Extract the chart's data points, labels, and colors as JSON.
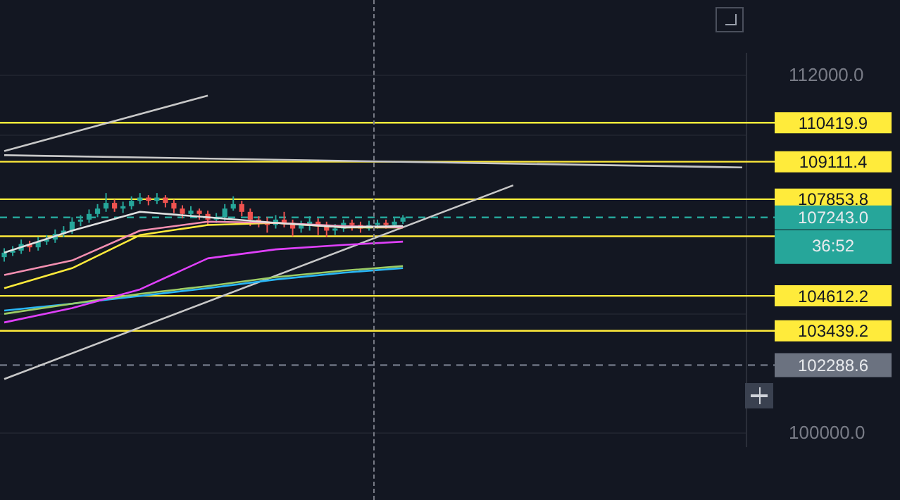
{
  "chart_data": {
    "type": "candlestick",
    "categories": [
      null,
      null,
      null,
      null,
      null,
      null,
      null,
      null,
      null,
      null,
      null,
      null,
      null,
      null,
      null,
      null,
      null,
      null,
      null,
      null,
      null,
      null,
      null,
      null,
      null,
      null,
      null,
      null,
      null,
      null,
      null,
      null,
      null,
      null,
      null,
      null,
      null,
      null,
      null,
      null,
      null,
      null,
      null,
      null,
      null,
      null,
      null,
      null,
      null,
      null,
      null,
      null,
      null,
      null,
      null,
      null,
      null,
      null,
      null,
      null,
      null,
      null,
      null,
      null,
      null,
      null,
      null,
      null,
      null,
      null,
      null,
      null,
      null,
      null,
      null,
      null,
      null,
      null,
      null,
      null,
      null,
      null,
      null,
      null,
      null,
      null,
      null,
      null
    ],
    "ohlc": [
      [
        105910,
        106210,
        105760,
        106060
      ],
      [
        106060,
        106280,
        105950,
        106130
      ],
      [
        106130,
        106500,
        106020,
        106350
      ],
      [
        106350,
        106460,
        106090,
        106240
      ],
      [
        106240,
        106580,
        106130,
        106430
      ],
      [
        106430,
        106650,
        106320,
        106500
      ],
      [
        106500,
        106840,
        106390,
        106690
      ],
      [
        106690,
        106950,
        106580,
        106800
      ],
      [
        106800,
        107250,
        106690,
        107100
      ],
      [
        107100,
        107320,
        106950,
        107170
      ],
      [
        107170,
        107510,
        107060,
        107360
      ],
      [
        107360,
        107690,
        107250,
        107540
      ],
      [
        107540,
        108060,
        107430,
        107730
      ],
      [
        107730,
        107840,
        107430,
        107540
      ],
      [
        107540,
        107770,
        107390,
        107620
      ],
      [
        107620,
        107950,
        107510,
        107800
      ],
      [
        107800,
        108060,
        107690,
        107910
      ],
      [
        107910,
        107990,
        107650,
        107800
      ],
      [
        107800,
        108060,
        107690,
        107910
      ],
      [
        107910,
        107990,
        107580,
        107730
      ],
      [
        107730,
        107840,
        107390,
        107540
      ],
      [
        107540,
        107650,
        107210,
        107360
      ],
      [
        107360,
        107620,
        107280,
        107470
      ],
      [
        107470,
        107540,
        107170,
        107360
      ],
      [
        107360,
        107470,
        106990,
        107170
      ],
      [
        107170,
        107390,
        107060,
        107250
      ],
      [
        107250,
        107690,
        107130,
        107540
      ],
      [
        107540,
        107950,
        107470,
        107690
      ],
      [
        107690,
        107800,
        107280,
        107430
      ],
      [
        107430,
        107540,
        106950,
        107170
      ],
      [
        107170,
        107280,
        106910,
        107100
      ],
      [
        107100,
        107250,
        106730,
        106990
      ],
      [
        106990,
        107320,
        106870,
        107170
      ],
      [
        107170,
        107430,
        106910,
        107060
      ],
      [
        107060,
        107170,
        106610,
        106870
      ],
      [
        106870,
        107130,
        106730,
        106990
      ],
      [
        106990,
        107280,
        106800,
        107100
      ],
      [
        107100,
        107210,
        106650,
        106950
      ],
      [
        106950,
        107100,
        106580,
        106800
      ],
      [
        106800,
        107020,
        106650,
        106870
      ],
      [
        106870,
        107170,
        106760,
        107060
      ],
      [
        107060,
        107170,
        106800,
        106990
      ],
      [
        106990,
        107100,
        106730,
        106870
      ],
      [
        106870,
        107130,
        106800,
        106990
      ],
      [
        106990,
        107170,
        106870,
        107060
      ],
      [
        107060,
        107170,
        106870,
        106990
      ],
      [
        106990,
        107210,
        106910,
        107100
      ],
      [
        107100,
        107320,
        107020,
        107243
      ],
      null,
      null,
      null,
      null,
      null,
      null,
      null,
      null,
      null,
      null,
      null,
      null,
      null,
      null,
      null,
      null,
      null,
      null,
      null,
      null,
      null,
      null,
      null,
      null,
      null,
      null,
      null,
      null,
      null,
      null,
      null,
      null,
      null,
      null,
      null,
      null,
      null,
      null,
      null,
      null
    ],
    "series": [
      {
        "type": "line",
        "color": "#e0e0e0",
        "values": [
          106060,
          null,
          null,
          null,
          null,
          null,
          null,
          null,
          106800,
          null,
          null,
          null,
          null,
          null,
          null,
          null,
          107430,
          null,
          null,
          null,
          null,
          null,
          null,
          null,
          107250,
          null,
          null,
          null,
          null,
          null,
          null,
          null,
          107060,
          null,
          null,
          null,
          null,
          null,
          null,
          null,
          106910,
          null,
          null,
          null,
          null,
          null,
          null,
          106950,
          null,
          null,
          null,
          null,
          null,
          null,
          null,
          null,
          null,
          null,
          null,
          null,
          null,
          null,
          null,
          null,
          null,
          null,
          null,
          null,
          null,
          null,
          null,
          null,
          null,
          null,
          null,
          null,
          null,
          null,
          null,
          null,
          null,
          null,
          null,
          null,
          null,
          null,
          null,
          null
        ]
      },
      {
        "type": "line",
        "color": "#f48fb1",
        "values": [
          105310,
          null,
          null,
          null,
          null,
          null,
          null,
          null,
          105800,
          null,
          null,
          null,
          null,
          null,
          null,
          null,
          106800,
          null,
          null,
          null,
          null,
          null,
          null,
          null,
          107100,
          null,
          null,
          null,
          null,
          null,
          null,
          null,
          107060,
          null,
          null,
          null,
          null,
          null,
          null,
          null,
          106950,
          null,
          null,
          null,
          null,
          null,
          null,
          106910,
          null,
          null,
          null,
          null,
          null,
          null,
          null,
          null,
          null,
          null,
          null,
          null,
          null,
          null,
          null,
          null,
          null,
          null,
          null,
          null,
          null,
          null,
          null,
          null,
          null,
          null,
          null,
          null,
          null,
          null,
          null,
          null,
          null,
          null,
          null,
          null,
          null,
          null,
          null,
          null
        ]
      },
      {
        "type": "line",
        "color": "#ffeb3b",
        "values": [
          104870,
          null,
          null,
          null,
          null,
          null,
          null,
          null,
          105540,
          null,
          null,
          null,
          null,
          null,
          null,
          null,
          106650,
          null,
          null,
          null,
          null,
          null,
          null,
          null,
          106990,
          null,
          null,
          null,
          null,
          null,
          null,
          null,
          107060,
          null,
          null,
          null,
          null,
          null,
          null,
          null,
          106910,
          null,
          null,
          null,
          null,
          null,
          null,
          106910,
          null,
          null,
          null,
          null,
          null,
          null,
          null,
          null,
          null,
          null,
          null,
          null,
          null,
          null,
          null,
          null,
          null,
          null,
          null,
          null,
          null,
          null,
          null,
          null,
          null,
          null,
          null,
          null,
          null,
          null,
          null,
          null,
          null,
          null,
          null,
          null,
          null,
          null,
          null,
          null
        ]
      },
      {
        "type": "line",
        "color": "#e040fb",
        "values": [
          103720,
          null,
          null,
          null,
          null,
          null,
          null,
          null,
          104200,
          null,
          null,
          null,
          null,
          null,
          null,
          null,
          104830,
          null,
          null,
          null,
          null,
          null,
          null,
          null,
          105870,
          null,
          null,
          null,
          null,
          null,
          null,
          null,
          106170,
          null,
          null,
          null,
          null,
          null,
          null,
          null,
          106320,
          null,
          null,
          null,
          null,
          null,
          null,
          106430,
          null,
          null,
          null,
          null,
          null,
          null,
          null,
          null,
          null,
          null,
          null,
          null,
          null,
          null,
          null,
          null,
          null,
          null,
          null,
          null,
          null,
          null,
          null,
          null,
          null,
          null,
          null,
          null,
          null,
          null,
          null,
          null,
          null,
          null,
          null,
          null,
          null,
          null,
          null,
          null
        ]
      },
      {
        "type": "line",
        "color": "#9ccc65",
        "values": [
          104010,
          null,
          null,
          null,
          null,
          null,
          null,
          null,
          104350,
          null,
          null,
          null,
          null,
          null,
          null,
          null,
          104680,
          null,
          null,
          null,
          null,
          null,
          null,
          null,
          104940,
          null,
          null,
          null,
          null,
          null,
          null,
          null,
          105240,
          null,
          null,
          null,
          null,
          null,
          null,
          null,
          105460,
          null,
          null,
          null,
          null,
          null,
          null,
          105610,
          null,
          null,
          null,
          null,
          null,
          null,
          null,
          null,
          null,
          null,
          null,
          null,
          null,
          null,
          null,
          null,
          null,
          null,
          null,
          null,
          null,
          null,
          null,
          null,
          null,
          null,
          null,
          null,
          null,
          null,
          null,
          null,
          null,
          null,
          null,
          null,
          null,
          null,
          null,
          null
        ]
      },
      {
        "type": "line",
        "color": "#29b6f6",
        "values": [
          104120,
          null,
          null,
          null,
          null,
          null,
          null,
          null,
          104350,
          null,
          null,
          null,
          null,
          null,
          null,
          null,
          104610,
          null,
          null,
          null,
          null,
          null,
          null,
          null,
          104870,
          null,
          null,
          null,
          null,
          null,
          null,
          null,
          105160,
          null,
          null,
          null,
          null,
          null,
          null,
          null,
          105390,
          null,
          null,
          null,
          null,
          null,
          null,
          105540,
          null,
          null,
          null,
          null,
          null,
          null,
          null,
          null,
          null,
          null,
          null,
          null,
          null,
          null,
          null,
          null,
          null,
          null,
          null,
          null,
          null,
          null,
          null,
          null,
          null,
          null,
          null,
          null,
          null,
          null,
          null,
          null,
          null,
          null,
          null,
          null,
          null,
          null,
          null,
          null
        ]
      },
      {
        "type": "line",
        "color": "#c8c8c8",
        "values": [
          109470,
          null,
          null,
          null,
          null,
          null,
          null,
          null,
          null,
          null,
          null,
          null,
          null,
          null,
          null,
          null,
          null,
          null,
          null,
          null,
          null,
          null,
          null,
          null,
          111330,
          null,
          null,
          null,
          null,
          null,
          null,
          null,
          null,
          null,
          null,
          null,
          null,
          null,
          null,
          null,
          null,
          null,
          null,
          null,
          null,
          null,
          null,
          null,
          null,
          null,
          null,
          null,
          null,
          null,
          null,
          null,
          null,
          null,
          null,
          null,
          null,
          null,
          null,
          null,
          null,
          null,
          null,
          null,
          null,
          null,
          null,
          null,
          null,
          null,
          null,
          null,
          null,
          null,
          null,
          null,
          null,
          null,
          null,
          null,
          null,
          null,
          null,
          null
        ]
      },
      {
        "type": "line",
        "color": "#c8c8c8",
        "values": [
          101820,
          null,
          null,
          null,
          null,
          null,
          null,
          null,
          null,
          null,
          null,
          null,
          null,
          null,
          null,
          null,
          null,
          null,
          null,
          null,
          null,
          null,
          null,
          null,
          null,
          null,
          null,
          null,
          null,
          null,
          null,
          null,
          null,
          null,
          null,
          null,
          null,
          null,
          null,
          null,
          null,
          null,
          null,
          null,
          null,
          null,
          null,
          null,
          null,
          null,
          null,
          null,
          null,
          null,
          null,
          null,
          null,
          null,
          null,
          null,
          108320,
          null,
          null,
          null,
          null,
          null,
          null,
          null,
          null,
          null,
          null,
          null,
          null,
          null,
          null,
          null,
          null,
          null,
          null,
          null,
          null,
          null,
          null,
          null,
          null,
          null,
          null,
          null
        ]
      },
      {
        "type": "line",
        "color": "#c8c8c8",
        "values": [
          109330,
          null,
          null,
          null,
          null,
          null,
          null,
          null,
          null,
          null,
          null,
          null,
          null,
          null,
          null,
          null,
          null,
          null,
          null,
          null,
          null,
          null,
          null,
          null,
          null,
          null,
          null,
          null,
          null,
          null,
          null,
          null,
          null,
          null,
          null,
          null,
          null,
          null,
          null,
          null,
          null,
          null,
          null,
          null,
          null,
          null,
          null,
          null,
          null,
          null,
          null,
          null,
          null,
          null,
          null,
          null,
          null,
          null,
          null,
          null,
          null,
          null,
          null,
          null,
          null,
          null,
          null,
          null,
          null,
          null,
          null,
          null,
          null,
          null,
          null,
          null,
          null,
          null,
          null,
          null,
          null,
          null,
          null,
          null,
          null,
          null,
          null,
          108920
        ]
      }
    ],
    "ylim": [
      99550,
      112750
    ],
    "yticks": [
      {
        "value": 100000,
        "label": "100000.0"
      },
      {
        "value": 104000,
        "label": null
      },
      {
        "value": 110000,
        "label": null
      },
      {
        "value": 112000,
        "label": "112000.0"
      }
    ],
    "ref_lines": [
      {
        "axis": "y",
        "value": 110419.9,
        "label": "110419.9",
        "color": "#ffeb3b"
      },
      {
        "axis": "y",
        "value": 109111.4,
        "label": "109111.4",
        "color": "#ffeb3b"
      },
      {
        "axis": "y",
        "value": 107853.8,
        "label": "107853.8",
        "color": "#ffeb3b"
      },
      {
        "axis": "y",
        "value": 106610,
        "label": null,
        "color": "#ffeb3b"
      },
      {
        "axis": "y",
        "value": 104612.2,
        "label": "104612.2",
        "color": "#ffeb3b"
      },
      {
        "axis": "y",
        "value": 103439.2,
        "label": "103439.2",
        "color": "#ffeb3b"
      },
      {
        "axis": "y",
        "value": 107243.0,
        "label": "107243.0",
        "color": "#26a69a",
        "line_style": "dashed"
      },
      {
        "axis": "y",
        "value": 102288.6,
        "label": "102288.6",
        "color": "#6b7280",
        "line_style": "dashed"
      }
    ],
    "annotations": [
      "36:52"
    ],
    "grid": "y",
    "legend": false,
    "marker": "none",
    "tick_labels": "y"
  }
}
